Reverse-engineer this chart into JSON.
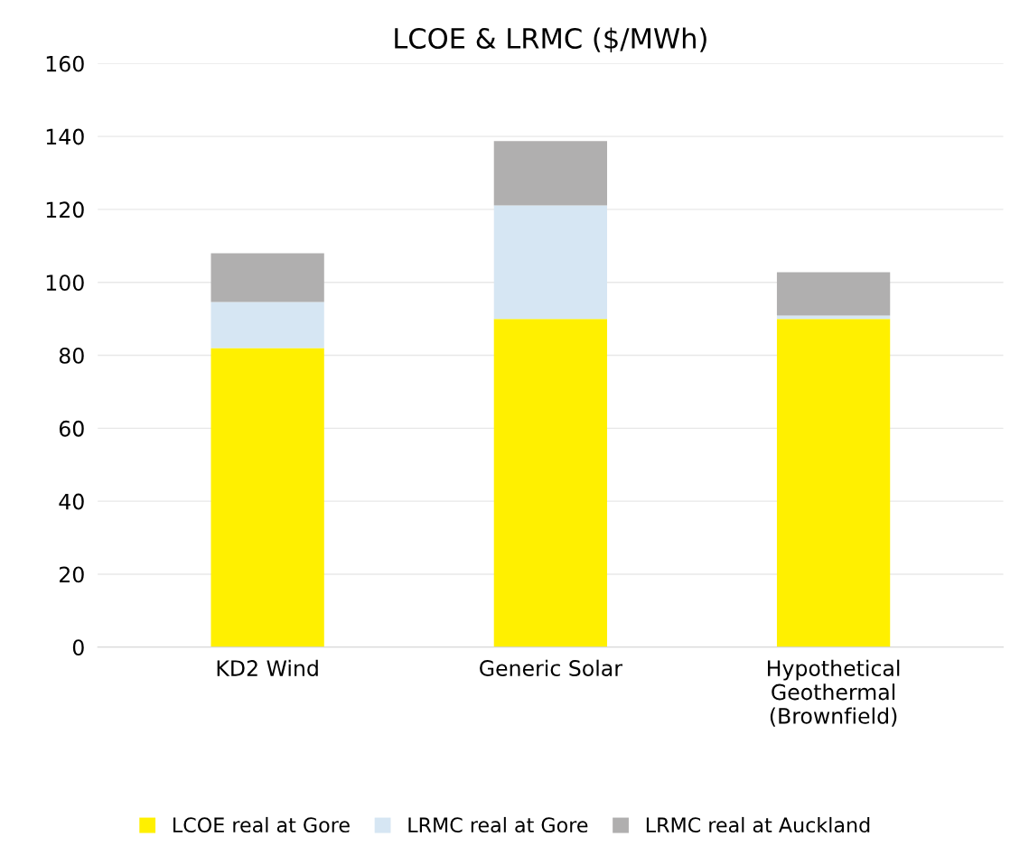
{
  "chart_data": {
    "type": "bar",
    "title": "LCOE & LRMC ($/MWh)",
    "stacked": true,
    "categories": [
      "KD2 Wind",
      "Generic Solar",
      "Hypothetical\nGeothermal\n(Brownfield)"
    ],
    "series": [
      {
        "name": "LCOE real at Gore",
        "color": "#fff000",
        "values": [
          82,
          90,
          90
        ]
      },
      {
        "name": "LRMC real at Gore",
        "color": "#d6e6f3",
        "values": [
          12.6,
          31.1,
          0.9
        ]
      },
      {
        "name": "LRMC real at Auckland",
        "color": "#b0afaf",
        "values": [
          13.4,
          17.6,
          11.9
        ]
      }
    ],
    "ylim": [
      0,
      160
    ],
    "yticks": [
      0,
      20,
      40,
      60,
      80,
      100,
      120,
      140,
      160
    ],
    "grid": "y",
    "legend": "bottom"
  }
}
